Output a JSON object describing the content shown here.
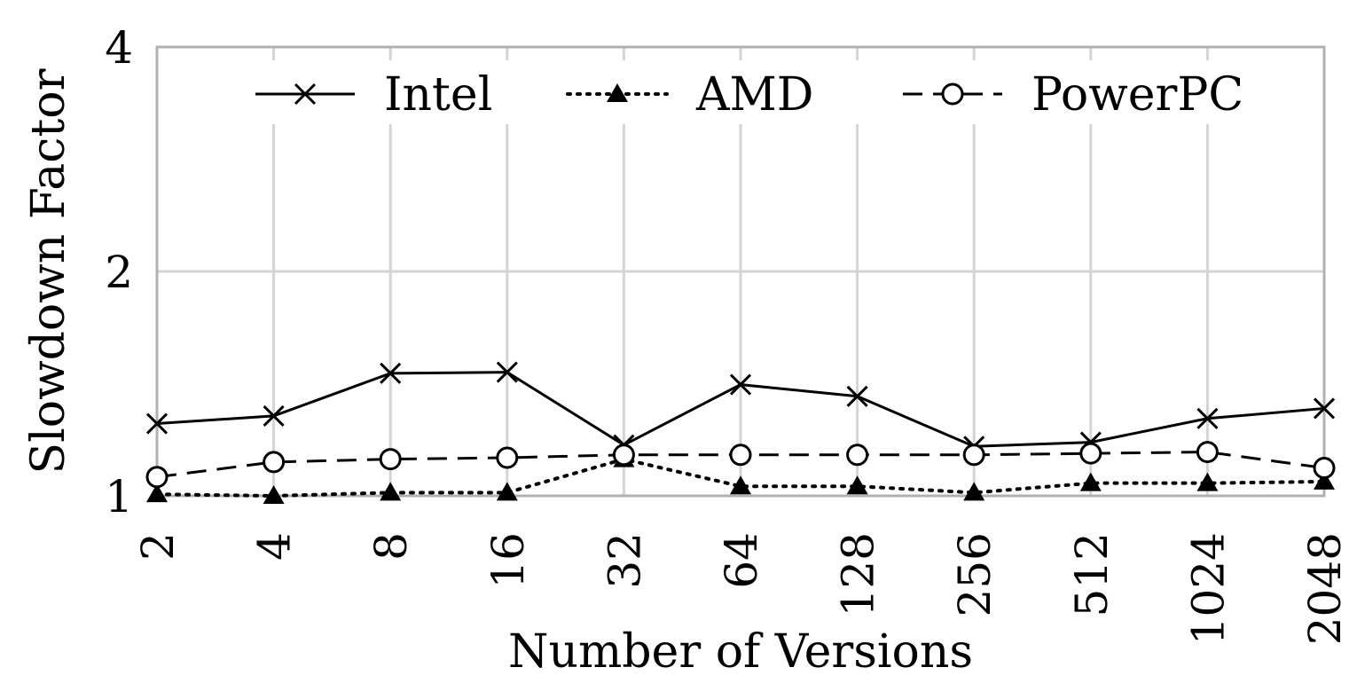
{
  "chart_data": {
    "type": "line",
    "title": "",
    "xlabel": "Number of Versions",
    "ylabel": "Slowdown Factor",
    "x_scale": "log2",
    "y_scale": "log",
    "categories": [
      "2",
      "4",
      "8",
      "16",
      "32",
      "64",
      "128",
      "256",
      "512",
      "1024",
      "2048"
    ],
    "yticks": [
      "1",
      "2",
      "4"
    ],
    "ylim": [
      1,
      4
    ],
    "grid": true,
    "legend_position": "top",
    "series": [
      {
        "name": "Intel",
        "line_style": "solid",
        "marker": "x",
        "color": "#000000",
        "values": [
          1.25,
          1.28,
          1.46,
          1.465,
          1.17,
          1.41,
          1.36,
          1.165,
          1.18,
          1.27,
          1.31
        ]
      },
      {
        "name": "AMD",
        "line_style": "dotted",
        "marker": "filled-triangle",
        "color": "#000000",
        "values": [
          1.005,
          1.0,
          1.01,
          1.01,
          1.12,
          1.03,
          1.03,
          1.01,
          1.04,
          1.04,
          1.045
        ]
      },
      {
        "name": "PowerPC",
        "line_style": "dashed",
        "marker": "open-circle",
        "color": "#000000",
        "values": [
          1.06,
          1.11,
          1.12,
          1.125,
          1.135,
          1.135,
          1.135,
          1.135,
          1.14,
          1.145,
          1.09
        ]
      }
    ]
  }
}
